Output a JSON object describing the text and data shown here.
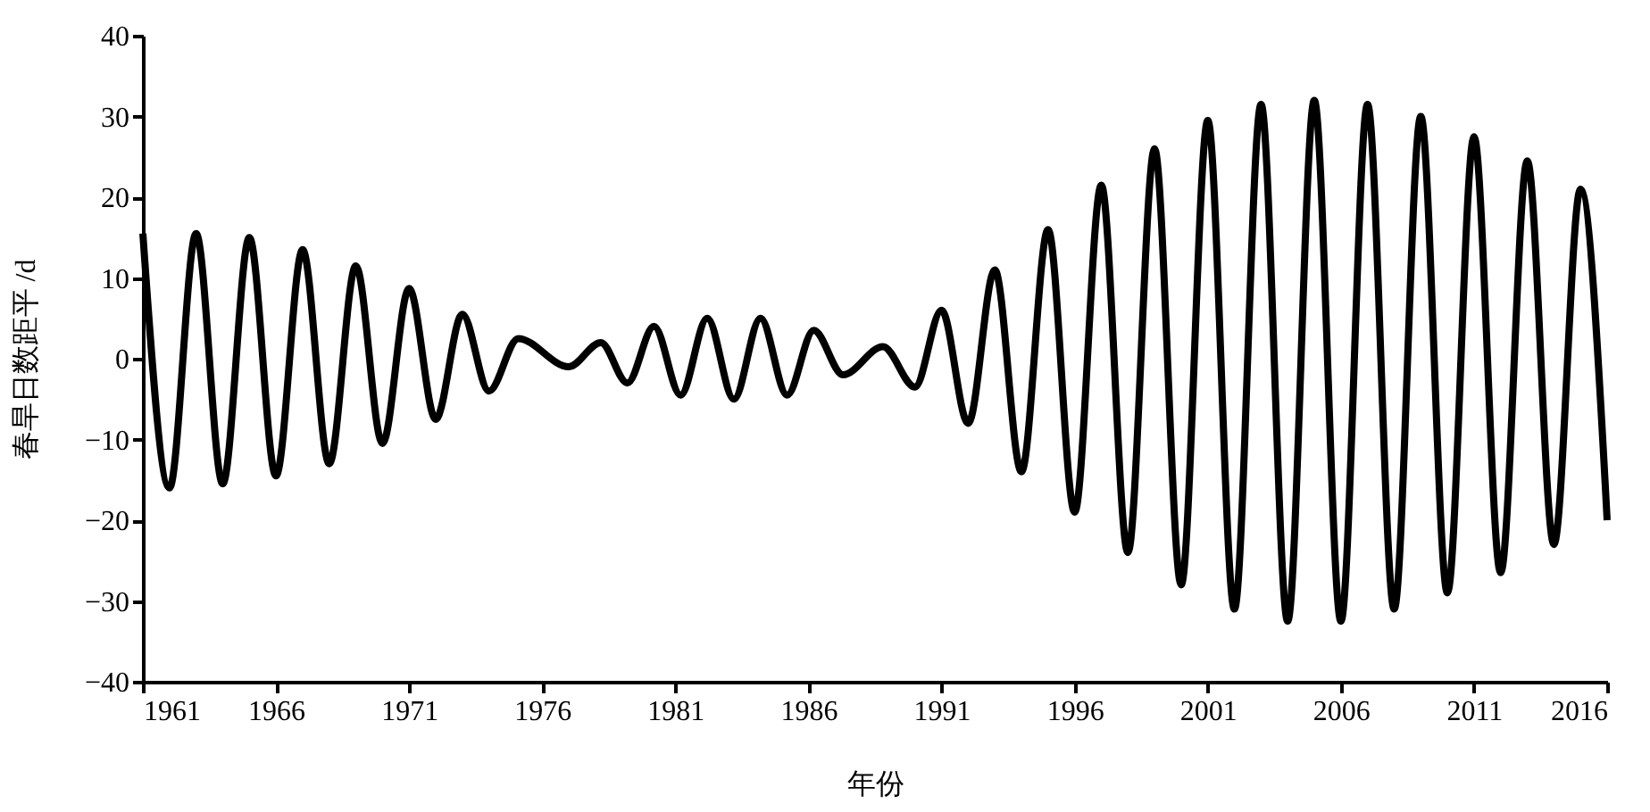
{
  "chart_data": {
    "type": "line",
    "xlabel": "年份",
    "ylabel": "春旱日数距平 /d",
    "x": [
      1961,
      1962,
      1963,
      1964,
      1965,
      1966,
      1967,
      1968,
      1969,
      1970,
      1971,
      1972,
      1973,
      1974,
      1975.1,
      1977,
      1978.2,
      1979.2,
      1980.2,
      1981.2,
      1982.2,
      1983.2,
      1984.2,
      1985.2,
      1986.2,
      1987.3,
      1988.8,
      1990,
      1991,
      1992,
      1993,
      1994,
      1995,
      1996,
      1997,
      1998,
      1999,
      2000,
      2001,
      2002,
      2003,
      2004,
      2005,
      2006,
      2007,
      2008,
      2009,
      2010,
      2011,
      2012,
      2013,
      2014,
      2015,
      2016
    ],
    "series": [
      {
        "color": "#000000",
        "values": [
          15.5,
          -16,
          15.5,
          -15.5,
          15,
          -14.5,
          13.5,
          -13,
          11.5,
          -10.5,
          8.7,
          -7.5,
          5.5,
          -4,
          2.5,
          -1,
          2,
          -3,
          4,
          -4.5,
          5,
          -5,
          5,
          -4.5,
          3.5,
          -2,
          1.5,
          -3.5,
          6,
          -8,
          11,
          -14,
          16,
          -19,
          21.5,
          -24,
          26,
          -28,
          29.5,
          -31,
          31.5,
          -32.5,
          32,
          -32.5,
          31.5,
          -31,
          30,
          -29,
          27.5,
          -26.5,
          24.5,
          -23,
          21,
          -20
        ]
      }
    ],
    "xlim": [
      1961,
      2016
    ],
    "xticks": [
      1961,
      1966,
      1971,
      1976,
      1981,
      1986,
      1991,
      1996,
      2001,
      2006,
      2011,
      2016
    ],
    "ylim": [
      -40,
      40
    ],
    "yticks": [
      -40,
      -30,
      -20,
      -10,
      0,
      10,
      20,
      30,
      40
    ],
    "grid": false,
    "legend": false,
    "marker": "none",
    "line_style": "solid"
  }
}
